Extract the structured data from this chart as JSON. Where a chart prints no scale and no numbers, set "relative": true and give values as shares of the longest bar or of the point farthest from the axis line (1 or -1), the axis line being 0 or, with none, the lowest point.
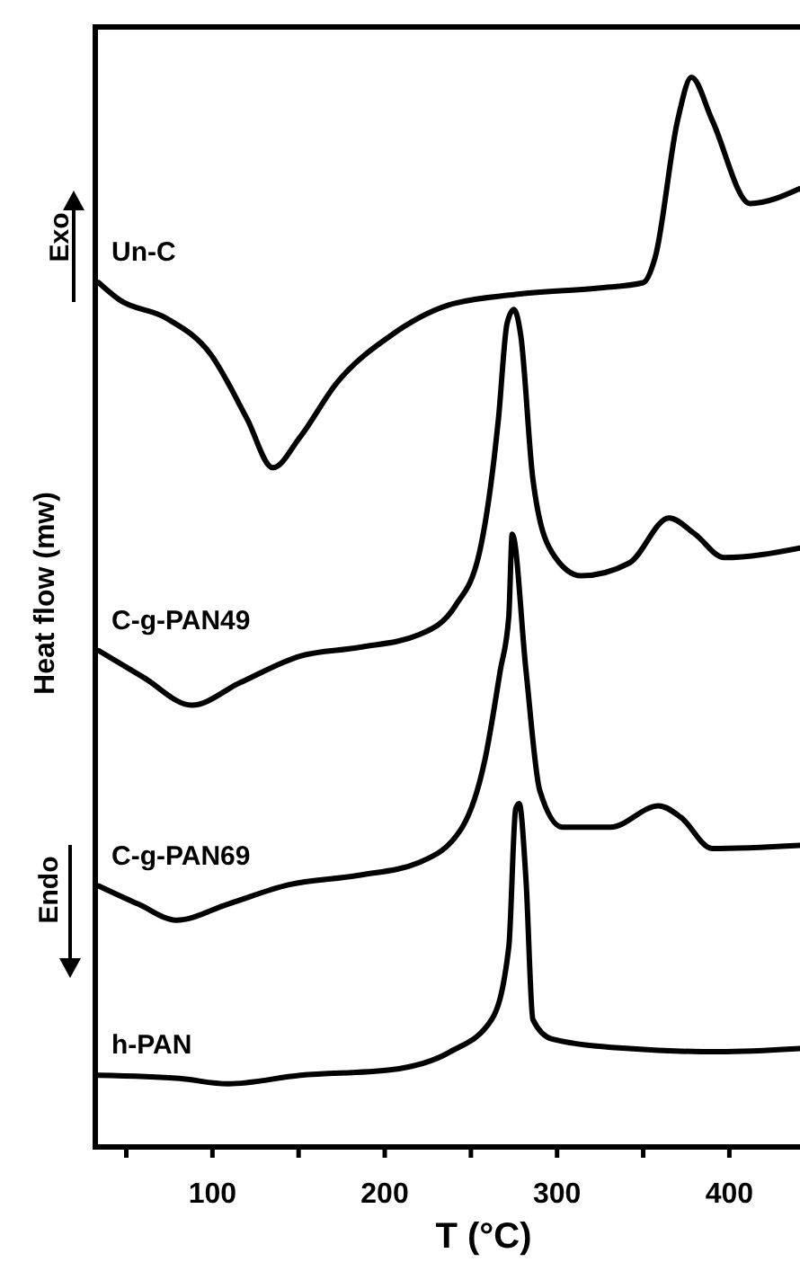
{
  "chart_data": {
    "type": "line",
    "relative": true,
    "xlabel": "T (°C)",
    "ylabel": "Heat flow (mw)",
    "annotations": [
      "Exo",
      "Endo"
    ],
    "xlim": [
      32,
      441
    ],
    "xticks": [
      {
        "value": 50,
        "label": null
      },
      100,
      {
        "value": 150,
        "label": null
      },
      200,
      {
        "value": 250,
        "label": null
      },
      300,
      {
        "value": 350,
        "label": null
      },
      400
    ],
    "tick_labels": "x",
    "grid": false,
    "marker": "none",
    "line_style": "solid",
    "series": [
      {
        "name": "Un-C",
        "color": "#000000",
        "x": [
          34,
          46,
          73,
          99,
          120,
          135,
          151,
          172,
          203,
          237,
          276,
          324,
          350,
          357,
          370,
          378,
          390,
          412,
          441
        ],
        "values": [
          0.808,
          0.792,
          0.775,
          0.741,
          0.681,
          0.635,
          0.664,
          0.714,
          0.758,
          0.787,
          0.797,
          0.803,
          0.808,
          0.832,
          0.96,
          1,
          0.96,
          0.882,
          0.896
        ]
      },
      {
        "name": "C-g-PAN49",
        "color": "#000000",
        "x": [
          34,
          60,
          88,
          116,
          151,
          185,
          220,
          241,
          255,
          266,
          271,
          275,
          279,
          286,
          297,
          314,
          342,
          365,
          380,
          397,
          441
        ],
        "values": [
          0.464,
          0.439,
          0.413,
          0.434,
          0.459,
          0.467,
          0.479,
          0.506,
          0.556,
          0.681,
          0.77,
          0.783,
          0.758,
          0.624,
          0.556,
          0.534,
          0.546,
          0.588,
          0.573,
          0.551,
          0.56
        ]
      },
      {
        "name": "C-g-PAN69",
        "color": "#000000",
        "x": [
          34,
          57,
          79,
          109,
          144,
          185,
          220,
          245,
          258,
          267,
          272,
          274,
          282,
          290,
          303,
          331,
          359,
          372,
          390,
          441
        ],
        "values": [
          0.244,
          0.227,
          0.212,
          0.227,
          0.245,
          0.254,
          0.266,
          0.299,
          0.361,
          0.445,
          0.496,
          0.573,
          0.445,
          0.333,
          0.299,
          0.299,
          0.319,
          0.308,
          0.279,
          0.282
        ]
      },
      {
        "name": "h-PAN",
        "color": "#000000",
        "x": [
          34,
          81,
          109,
          151,
          203,
          238,
          262,
          272,
          276,
          278,
          282,
          286,
          297,
          342,
          394,
          441
        ],
        "values": [
          0.067,
          0.064,
          0.059,
          0.067,
          0.072,
          0.089,
          0.119,
          0.187,
          0.316,
          0.321,
          0.249,
          0.119,
          0.101,
          0.092,
          0.089,
          0.092
        ]
      }
    ]
  }
}
